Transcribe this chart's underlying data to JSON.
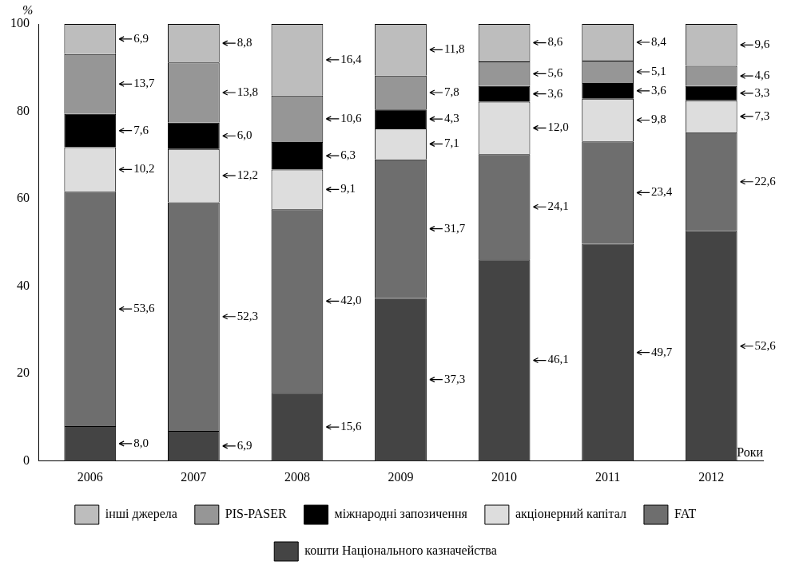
{
  "chart_data": {
    "type": "bar",
    "stacked": true,
    "ylabel": "%",
    "xlabel": "Роки",
    "categories": [
      "2006",
      "2007",
      "2008",
      "2009",
      "2010",
      "2011",
      "2012"
    ],
    "ylim": [
      0,
      100
    ],
    "yticks": [
      0,
      20,
      40,
      60,
      80,
      100
    ],
    "grid": false,
    "legend": "bottom",
    "series": [
      {
        "name": "кошти Національного казначейства",
        "color": "#444444",
        "values": [
          8.0,
          6.9,
          15.6,
          37.3,
          46.1,
          49.7,
          52.6
        ],
        "value_labels": [
          "8,0",
          "6,9",
          "15,6",
          "37,3",
          "46,1",
          "49,7",
          "52,6"
        ]
      },
      {
        "name": "FAT",
        "color": "#6e6e6e",
        "values": [
          53.6,
          52.3,
          42.0,
          31.7,
          24.1,
          23.4,
          22.6
        ],
        "value_labels": [
          "53,6",
          "52,3",
          "42,0",
          "31,7",
          "24,1",
          "23,4",
          "22,6"
        ]
      },
      {
        "name": "акціонерний капітал",
        "color": "#dddddd",
        "values": [
          10.2,
          12.2,
          9.1,
          7.1,
          12.0,
          9.8,
          7.3
        ],
        "value_labels": [
          "10,2",
          "12,2",
          "9,1",
          "7,1",
          "12,0",
          "9,8",
          "7,3"
        ]
      },
      {
        "name": "міжнародні запозичення",
        "color": "#000000",
        "values": [
          7.6,
          6.0,
          6.3,
          4.3,
          3.6,
          3.6,
          3.3
        ],
        "value_labels": [
          "7,6",
          "6,0",
          "6,3",
          "4,3",
          "3,6",
          "3,6",
          "3,3"
        ]
      },
      {
        "name": "PIS-PASER",
        "color": "#969696",
        "values": [
          13.7,
          13.8,
          10.6,
          7.8,
          5.6,
          5.1,
          4.6
        ],
        "value_labels": [
          "13,7",
          "13,8",
          "10,6",
          "7,8",
          "5,6",
          "5,1",
          "4,6"
        ]
      },
      {
        "name": "інші джерела",
        "color": "#bdbdbd",
        "values": [
          6.9,
          8.8,
          16.4,
          11.8,
          8.6,
          8.4,
          9.6
        ],
        "value_labels": [
          "6,9",
          "8,8",
          "16,4",
          "11,8",
          "8,6",
          "8,4",
          "9,6"
        ]
      }
    ]
  }
}
